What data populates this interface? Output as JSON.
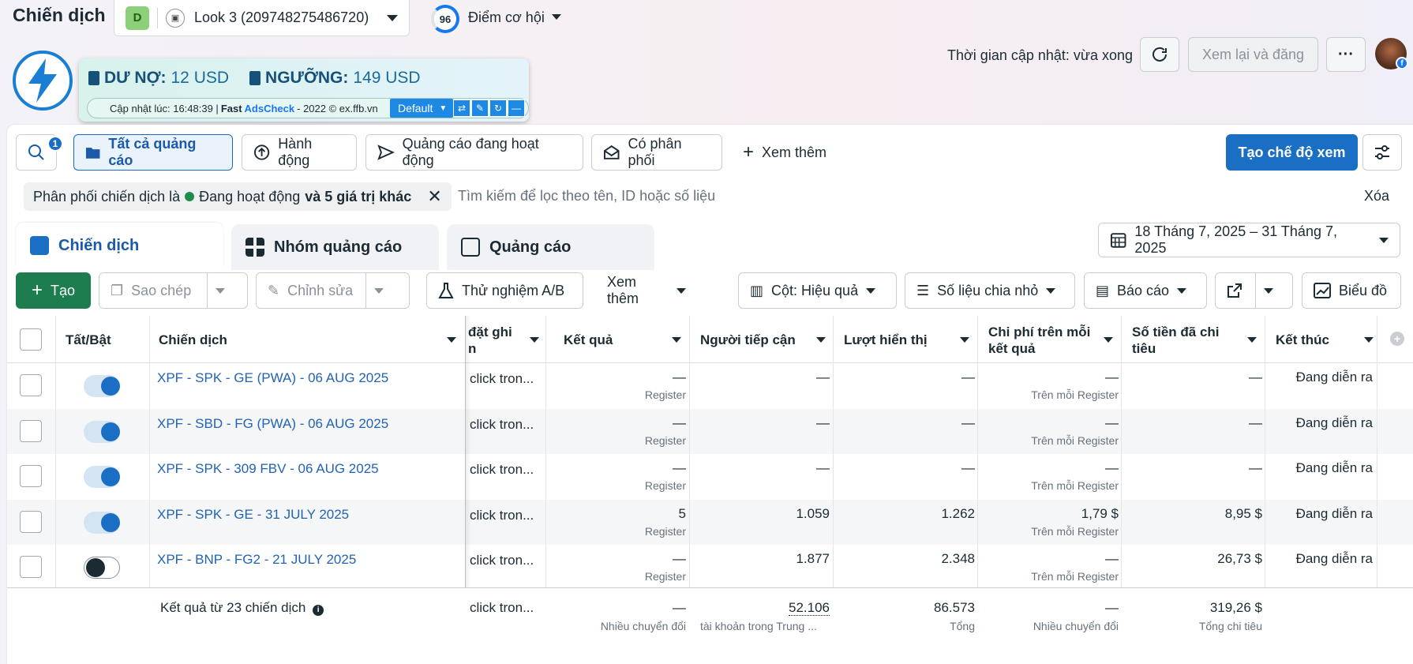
{
  "header": {
    "title": "Chiến dịch",
    "account_initial": "D",
    "account_name": "Look 3 (209748275486720)",
    "score": "96",
    "score_label": "Điểm cơ hội",
    "update_time": "Thời gian cập nhật: vừa xong",
    "review_button": "Xem lại và đăng",
    "more_button": "···"
  },
  "extension": {
    "debt_label": "DƯ NỢ:",
    "debt_value": "12 USD",
    "threshold_label": "NGƯỠNG:",
    "threshold_value": "149 USD",
    "update_prefix": "Cập nhật lúc: 16:48:39 |",
    "brand_fast": "Fast",
    "brand_ads": "AdsCheck",
    "copyright": "- 2022 © ex.ffb.vn",
    "select_value": "Default"
  },
  "toolbar": {
    "search_badge": "1",
    "all_ads": "Tất cả quảng cáo",
    "actions": "Hành động",
    "active_ads": "Quảng cáo đang hoạt động",
    "delivered": "Có phân phối",
    "see_more": "Xem thêm",
    "create_view": "Tạo chế độ xem"
  },
  "filter": {
    "chip_prefix": "Phân phối chiến dịch là",
    "chip_value": "Đang hoạt động",
    "chip_extra": "và 5 giá trị khác",
    "placeholder": "Tìm kiếm để lọc theo tên, ID hoặc số liệu",
    "clear": "Xóa"
  },
  "tabs": [
    {
      "label": "Chiến dịch"
    },
    {
      "label": "Nhóm quảng cáo"
    },
    {
      "label": "Quảng cáo"
    }
  ],
  "date_range": "18 Tháng 7, 2025 – 31 Tháng 7, 2025",
  "actions_bar": {
    "create": "Tạo",
    "copy": "Sao chép",
    "edit": "Chỉnh sửa",
    "ab_test": "Thử nghiệm A/B",
    "see_more": "Xem thêm",
    "columns": "Cột: Hiệu quả",
    "breakdown": "Số liệu chia nhỏ",
    "report": "Báo cáo",
    "chart": "Biểu đồ"
  },
  "table": {
    "headers": {
      "toggle": "Tất/Bật",
      "campaign": "Chiến dịch",
      "attribution_line1": "đặt ghi",
      "attribution_line2": "n",
      "result": "Kết quả",
      "reach": "Người tiếp cận",
      "impressions": "Lượt hiển thị",
      "cpr_line1": "Chi phí trên mỗi",
      "cpr_line2": "kết quả",
      "spent_line1": "Số tiền đã chi",
      "spent_line2": "tiêu",
      "end": "Kết thúc"
    },
    "rows": [
      {
        "on": true,
        "name": "XPF - SPK - GE (PWA) - 06 AUG 2025",
        "attribution": "click tron...",
        "result": "—",
        "result_sub": "Register",
        "reach": "—",
        "impressions": "—",
        "cpr": "—",
        "cpr_sub": "Trên mỗi Register",
        "spent": "—",
        "end": "Đang diễn ra"
      },
      {
        "on": true,
        "name": "XPF - SBD - FG (PWA) - 06 AUG 2025",
        "attribution": "click tron...",
        "result": "—",
        "result_sub": "Register",
        "reach": "—",
        "impressions": "—",
        "cpr": "—",
        "cpr_sub": "Trên mỗi Register",
        "spent": "—",
        "end": "Đang diễn ra"
      },
      {
        "on": true,
        "name": "XPF - SPK - 309 FBV - 06 AUG 2025",
        "attribution": "click tron...",
        "result": "—",
        "result_sub": "Register",
        "reach": "—",
        "impressions": "—",
        "cpr": "—",
        "cpr_sub": "Trên mỗi Register",
        "spent": "—",
        "end": "Đang diễn ra"
      },
      {
        "on": true,
        "name": "XPF - SPK - GE - 31 JULY 2025",
        "attribution": "click tron...",
        "result": "5",
        "result_sub": "Register",
        "reach": "1.059",
        "impressions": "1.262",
        "cpr": "1,79 $",
        "cpr_sub": "Trên mỗi Register",
        "spent": "8,95 $",
        "end": "Đang diễn ra"
      },
      {
        "on": false,
        "name": "XPF - BNP - FG2 - 21 JULY 2025",
        "attribution": "click tron...",
        "result": "—",
        "result_sub": "Register",
        "reach": "1.877",
        "impressions": "2.348",
        "cpr": "—",
        "cpr_sub": "Trên mỗi Register",
        "spent": "26,73 $",
        "end": "Đang diễn ra"
      }
    ],
    "summary": {
      "label": "Kết quả từ 23 chiến dịch",
      "attribution": "click tron...",
      "result": "—",
      "result_sub": "Nhiều chuyển đổi",
      "reach": "52.106",
      "reach_sub": "tài khoản trong Trung ...",
      "impressions": "86.573",
      "impressions_sub": "Tổng",
      "cpr": "—",
      "cpr_sub": "Nhiều chuyển đổi",
      "spent": "319,26 $",
      "spent_sub": "Tổng chi tiêu"
    }
  }
}
